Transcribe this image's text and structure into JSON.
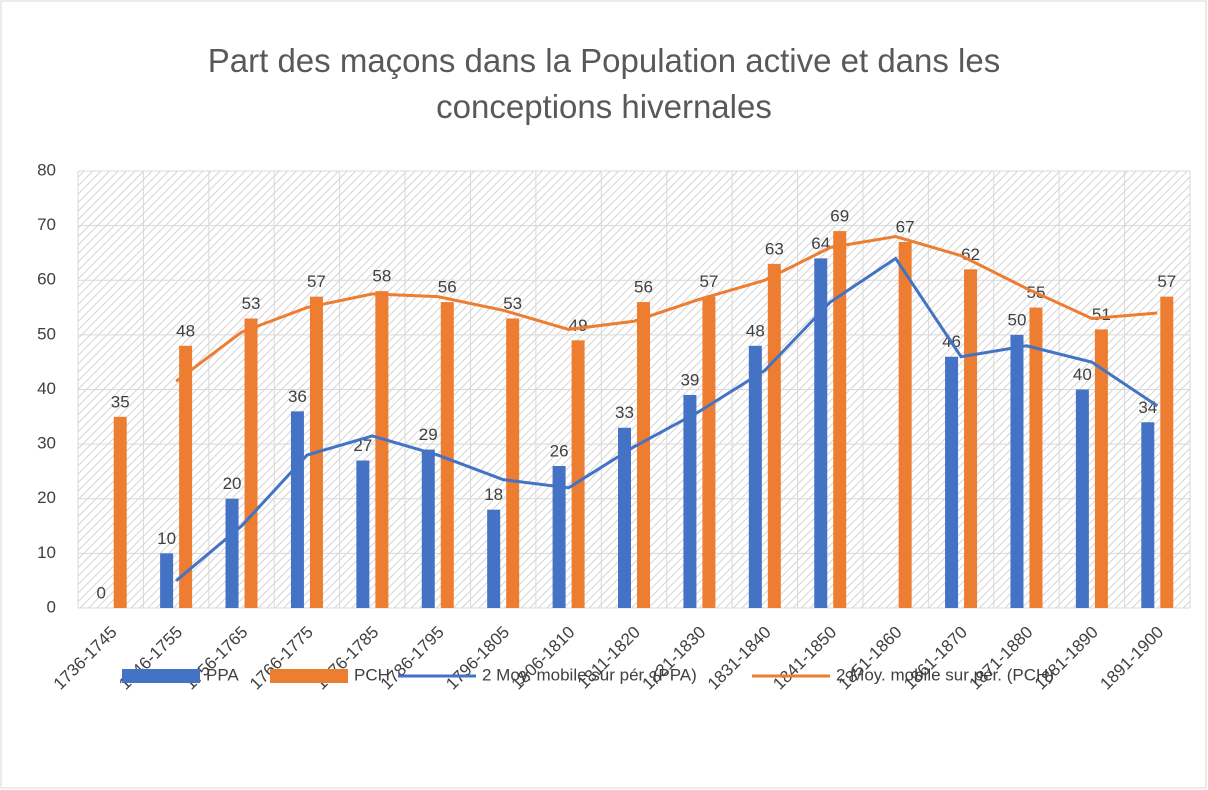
{
  "chart_data": {
    "type": "bar",
    "title": "Part des maçons dans la Population active et dans les conceptions hivernales",
    "categories": [
      "1736-1745",
      "1746-1755",
      "1756-1765",
      "1766-1775",
      "1776-1785",
      "1786-1795",
      "1796-1805",
      "1806-1810",
      "1811-1820",
      "1821-1830",
      "1831-1840",
      "1841-1850",
      "1851-1860",
      "1861-1870",
      "1871-1880",
      "1881-1890",
      "1891-1900"
    ],
    "series": [
      {
        "name": "PPA",
        "type": "bar",
        "color": "#4472c4",
        "values": [
          0,
          10,
          20,
          36,
          27,
          29,
          18,
          26,
          33,
          39,
          48,
          64,
          null,
          46,
          50,
          40,
          34
        ]
      },
      {
        "name": "PCH",
        "type": "bar",
        "color": "#ed7d31",
        "values": [
          35,
          48,
          53,
          57,
          58,
          56,
          53,
          49,
          56,
          57,
          63,
          69,
          67,
          62,
          55,
          51,
          57
        ]
      },
      {
        "name": "2 Moy. mobile sur pér. (PPA)",
        "type": "line",
        "color": "#4472c4",
        "values": [
          null,
          5,
          15,
          28,
          31.5,
          28,
          23.5,
          22,
          29.5,
          36,
          43.5,
          56,
          64,
          46,
          48,
          45,
          37
        ]
      },
      {
        "name": "2 Moy. mobile sur pér. (PCH)",
        "type": "line",
        "color": "#ed7d31",
        "values": [
          null,
          41.5,
          50.5,
          55,
          57.5,
          57,
          54.5,
          51,
          52.5,
          56.5,
          60,
          66,
          68,
          64.5,
          58.5,
          53,
          54
        ]
      }
    ],
    "ylim": [
      0,
      80
    ],
    "yticks": [
      0,
      10,
      20,
      30,
      40,
      50,
      60,
      70,
      80
    ],
    "grid": true,
    "legend": "bottom"
  }
}
